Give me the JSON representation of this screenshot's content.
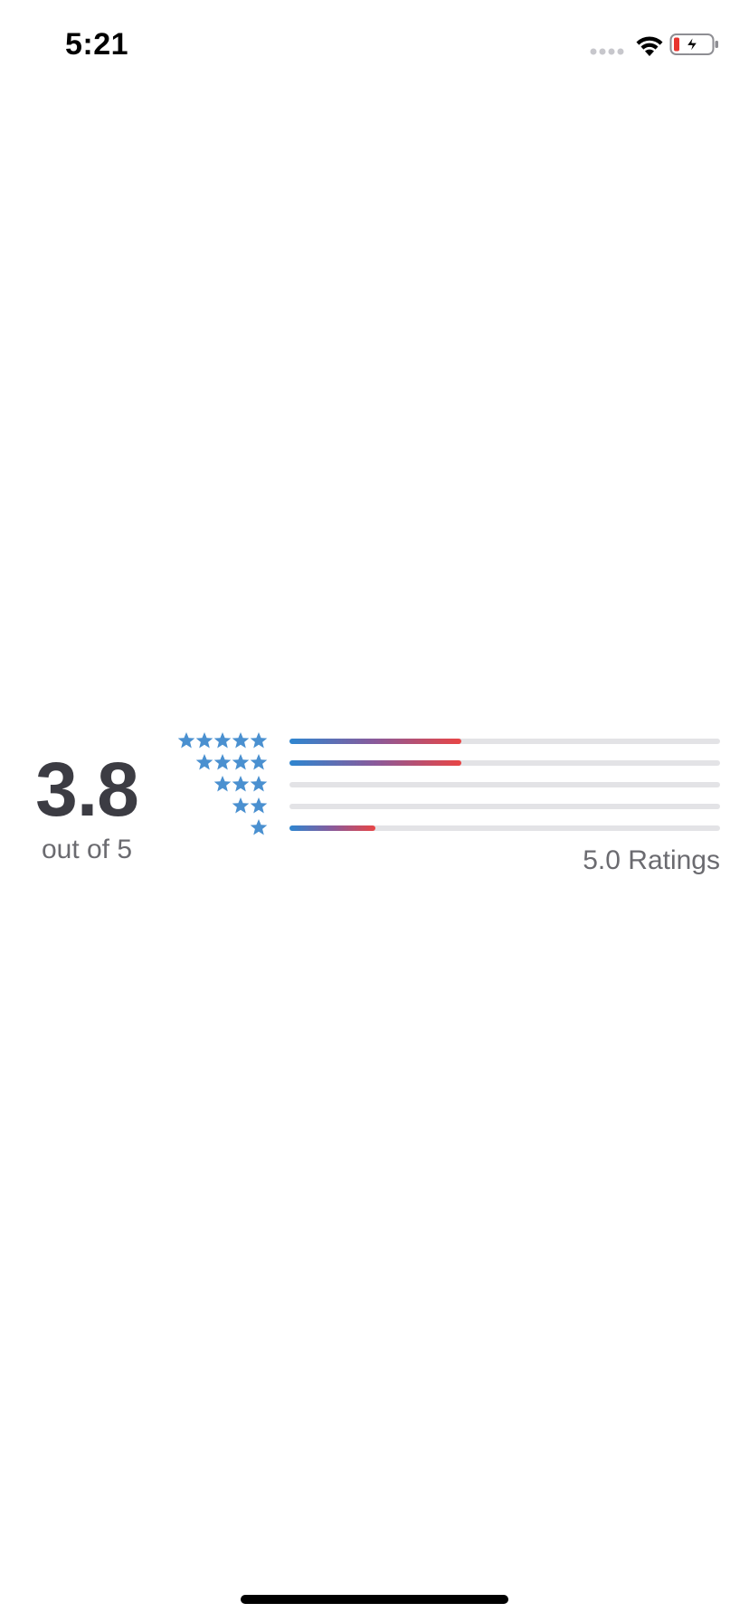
{
  "status_bar": {
    "time": "5:21",
    "icons": [
      "signal-dots-icon",
      "wifi-icon",
      "battery-low-charging-icon"
    ],
    "battery_color": "#e8342f"
  },
  "rating_summary": {
    "average": "3.8",
    "average_caption": "out of 5",
    "ratings_count_text": "5.0 Ratings",
    "star_color": "#4a90d0",
    "rows": [
      {
        "stars": 5,
        "fraction": 0.4
      },
      {
        "stars": 4,
        "fraction": 0.4
      },
      {
        "stars": 3,
        "fraction": 0.0
      },
      {
        "stars": 2,
        "fraction": 0.0
      },
      {
        "stars": 1,
        "fraction": 0.2
      }
    ],
    "bar_gradient": [
      "#2e86d0",
      "#8a5a9a",
      "#e84545"
    ],
    "track_color": "#e3e3e6"
  }
}
